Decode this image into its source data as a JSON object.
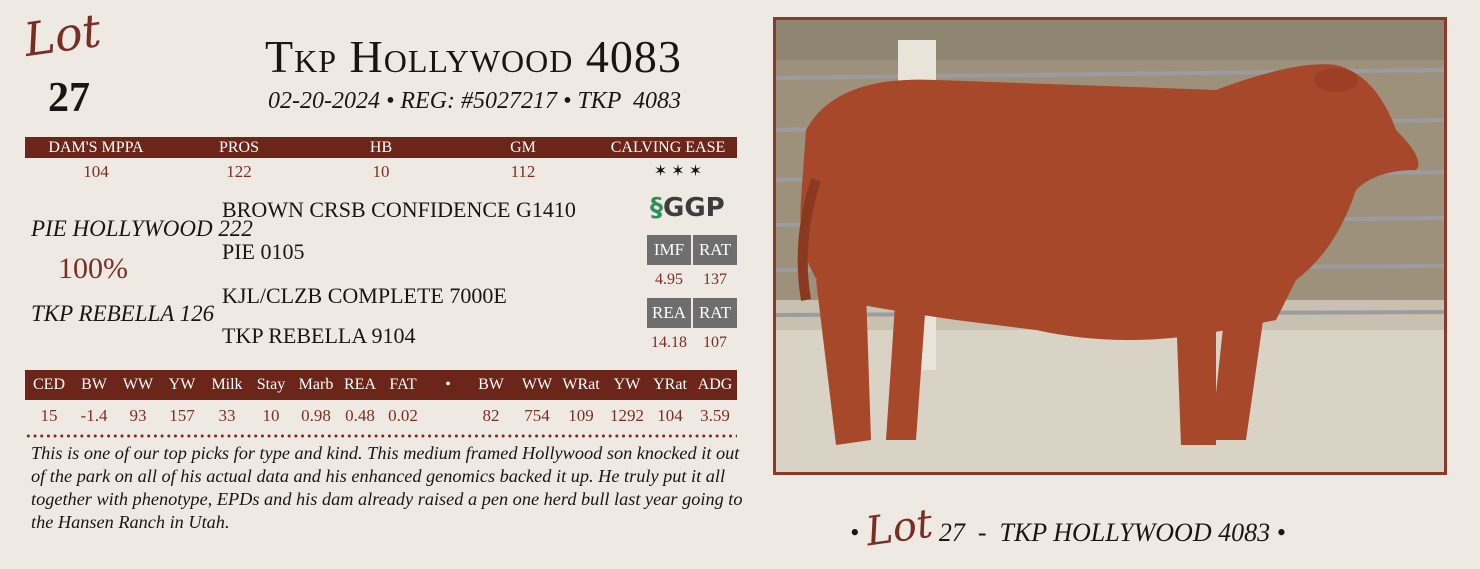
{
  "lot": {
    "word": "Lot",
    "number": "27"
  },
  "title": "Tkp Hollywood 4083",
  "subtitle": {
    "date": "02-20-2024",
    "reg": "REG: #5027217",
    "tattoo": "TKP  4083",
    "separator": "•"
  },
  "index_table": {
    "headers": [
      "DAM'S MPPA",
      "PROS",
      "HB",
      "GM",
      "CALVING EASE"
    ],
    "values": [
      "104",
      "122",
      "10",
      "112",
      "✶ ✶ ✶"
    ]
  },
  "pedigree": {
    "sire": "PIE HOLLYWOOD 222",
    "sire_sire": "BROWN CRSB CONFIDENCE G1410",
    "sire_dam": "PIE 0105",
    "dam": "TKP REBELLA 126",
    "dam_sire": "KJL/CLZB COMPLETE 7000E",
    "dam_dam": "TKP REBELLA 9104",
    "percentage": "100%"
  },
  "genomics": {
    "logo": "GGP",
    "imf": {
      "labels": [
        "IMF",
        "RAT"
      ],
      "values": [
        "4.95",
        "137"
      ]
    },
    "rea": {
      "labels": [
        "REA",
        "RAT"
      ],
      "values": [
        "14.18",
        "107"
      ]
    }
  },
  "epd_table": {
    "headers": [
      "CED",
      "BW",
      "WW",
      "YW",
      "Milk",
      "Stay",
      "Marb",
      "REA",
      "FAT",
      "•",
      "BW",
      "WW",
      "WRat",
      "YW",
      "YRat",
      "ADG"
    ],
    "values": [
      "15",
      "-1.4",
      "93",
      "157",
      "33",
      "10",
      "0.98",
      "0.48",
      "0.02",
      "",
      "82",
      "754",
      "109",
      "1292",
      "104",
      "3.59"
    ]
  },
  "description": "This is one of our top picks for type and kind. This medium framed Hollywood son knocked it out of the park on all of his actual data and his enhanced genomics backed it up. He truly put it all together with phenotype, EPDs and his dam already raised a pen one herd bull last year going to the Hansen Ranch in Utah.",
  "caption": {
    "bullet": "•",
    "lot_word": "Lot",
    "text": "27  -  TKP HOLLYWOOD 4083"
  },
  "colors": {
    "maroon": "#6b2619",
    "value_text": "#7a2e22",
    "genomic_box": "#6e6e6e",
    "background": "#eeeae3"
  }
}
